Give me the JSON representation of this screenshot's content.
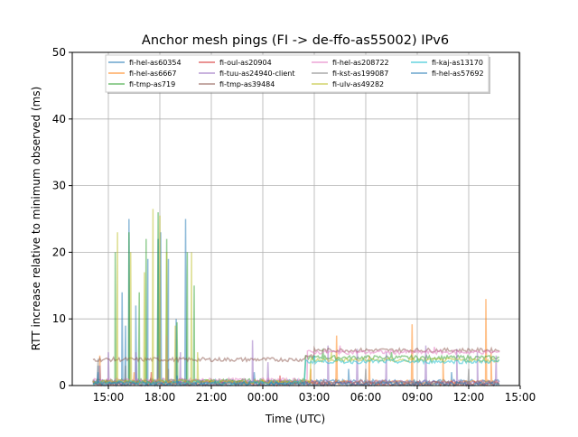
{
  "chart_data": {
    "type": "line",
    "title": "Anchor mesh pings (FI -> de-ffo-as55002) IPv6",
    "xlabel": "Time (UTC)",
    "ylabel": "RTT increase relative to minimum observed (ms)",
    "x_unit": "hours since 15:00 (day 1)",
    "xlim": [
      -2.1,
      24.1
    ],
    "ylim": [
      0,
      50
    ],
    "yticks": [
      0,
      10,
      20,
      30,
      40,
      50
    ],
    "xticks": [
      0,
      3,
      6,
      9,
      12,
      15,
      18,
      21,
      24
    ],
    "xtick_labels": [
      "15:00",
      "18:00",
      "21:00",
      "00:00",
      "03:00",
      "06:00",
      "09:00",
      "12:00",
      "15:00"
    ],
    "grid": true,
    "legend_position": "top-center",
    "series": [
      {
        "name": "fi-hel-as60354",
        "color": "#1f77b4",
        "baseline": [
          [
            -0.9,
            22.8,
            0.6
          ]
        ],
        "spikes": [
          [
            -0.6,
            3
          ],
          [
            0.8,
            14
          ],
          [
            1.0,
            9
          ],
          [
            1.2,
            25
          ],
          [
            1.6,
            12
          ],
          [
            2.3,
            19
          ],
          [
            2.9,
            22
          ],
          [
            3.05,
            23
          ],
          [
            3.5,
            19
          ],
          [
            3.95,
            10
          ],
          [
            4.5,
            25
          ],
          [
            8.5,
            2
          ],
          [
            14,
            2.5
          ],
          [
            20,
            2
          ]
        ]
      },
      {
        "name": "fi-hel-as6667",
        "color": "#ff7f0e",
        "baseline": [
          [
            -0.9,
            22.8,
            0.5
          ]
        ],
        "spikes": [
          [
            -0.5,
            4.5
          ],
          [
            1.5,
            2
          ],
          [
            11.8,
            2.5
          ],
          [
            13.3,
            7.5
          ],
          [
            15.2,
            4.5
          ],
          [
            17.7,
            9.2
          ],
          [
            19.5,
            4
          ],
          [
            22.0,
            13
          ],
          [
            22.3,
            5
          ]
        ]
      },
      {
        "name": "fi-tmp-as719",
        "color": "#2ca02c",
        "baseline": [
          [
            -0.9,
            11.5,
            0.7
          ],
          [
            11.5,
            22.8,
            4.2
          ]
        ],
        "spikes": [
          [
            0.4,
            20
          ],
          [
            1.2,
            23
          ],
          [
            1.8,
            14
          ],
          [
            2.2,
            22
          ],
          [
            2.9,
            26
          ],
          [
            3.4,
            22
          ],
          [
            4.0,
            9.5
          ],
          [
            4.6,
            20
          ],
          [
            5.0,
            15
          ],
          [
            12.5,
            5.5
          ],
          [
            16.5,
            5
          ]
        ]
      },
      {
        "name": "fi-oul-as20904",
        "color": "#d62728",
        "baseline": [
          [
            -0.9,
            22.8,
            0.3
          ]
        ],
        "spikes": [
          [
            2.5,
            2
          ],
          [
            10,
            1.5
          ]
        ]
      },
      {
        "name": "fi-tuu-as24940-client",
        "color": "#9467bd",
        "baseline": [
          [
            -0.9,
            22.8,
            0.5
          ]
        ],
        "spikes": [
          [
            -0.5,
            3
          ],
          [
            0.0,
            5
          ],
          [
            1.6,
            5
          ],
          [
            2.9,
            4.5
          ],
          [
            4.2,
            5
          ],
          [
            8.4,
            6.8
          ],
          [
            9.3,
            3.5
          ],
          [
            12.8,
            6
          ],
          [
            14.5,
            5.5
          ],
          [
            16.2,
            5
          ],
          [
            18.5,
            6
          ],
          [
            20.3,
            5.5
          ],
          [
            21.5,
            5
          ],
          [
            22.6,
            4.5
          ]
        ]
      },
      {
        "name": "fi-tmp-as39484",
        "color": "#8c564b",
        "baseline": [
          [
            -0.9,
            11.5,
            3.9
          ],
          [
            11.5,
            12,
            4.5
          ],
          [
            12,
            22.8,
            5.3
          ]
        ],
        "spikes": []
      },
      {
        "name": "fi-hel-as208722",
        "color": "#e377c2",
        "baseline": [
          [
            -0.9,
            11.6,
            0.8
          ],
          [
            11.6,
            22.8,
            5.0
          ]
        ],
        "spikes": [
          [
            3.4,
            7.5
          ],
          [
            13.5,
            6
          ],
          [
            19,
            5.8
          ]
        ]
      },
      {
        "name": "fi-kst-as199087",
        "color": "#7f7f7f",
        "baseline": [
          [
            -0.9,
            22.8,
            0.4
          ]
        ],
        "spikes": [
          [
            -0.6,
            4
          ],
          [
            1.0,
            3
          ],
          [
            3.5,
            2.5
          ],
          [
            15,
            2.5
          ],
          [
            21,
            2.5
          ]
        ]
      },
      {
        "name": "fi-ulv-as49282",
        "color": "#bcbd22",
        "baseline": [
          [
            -0.9,
            11.8,
            0.6
          ],
          [
            11.8,
            22.8,
            3.8
          ]
        ],
        "spikes": [
          [
            0.53,
            23
          ],
          [
            1.3,
            20
          ],
          [
            2.1,
            17
          ],
          [
            2.6,
            26.5
          ],
          [
            3.0,
            25.5
          ],
          [
            3.4,
            20
          ],
          [
            3.9,
            9
          ],
          [
            4.85,
            20
          ],
          [
            5.2,
            5
          ],
          [
            13,
            5
          ]
        ]
      },
      {
        "name": "fi-kaj-as13170",
        "color": "#17becf",
        "baseline": [
          [
            -0.9,
            11.5,
            0.4
          ],
          [
            11.5,
            22.8,
            3.6
          ]
        ],
        "spikes": [
          [
            12,
            4.5
          ],
          [
            18,
            4
          ]
        ]
      },
      {
        "name": "fi-hel-as57692",
        "color": "#1f77b4",
        "baseline": [
          [
            -0.9,
            22.8,
            0.2
          ]
        ],
        "spikes": [
          [
            -0.6,
            2
          ],
          [
            4,
            1.5
          ]
        ]
      }
    ]
  }
}
